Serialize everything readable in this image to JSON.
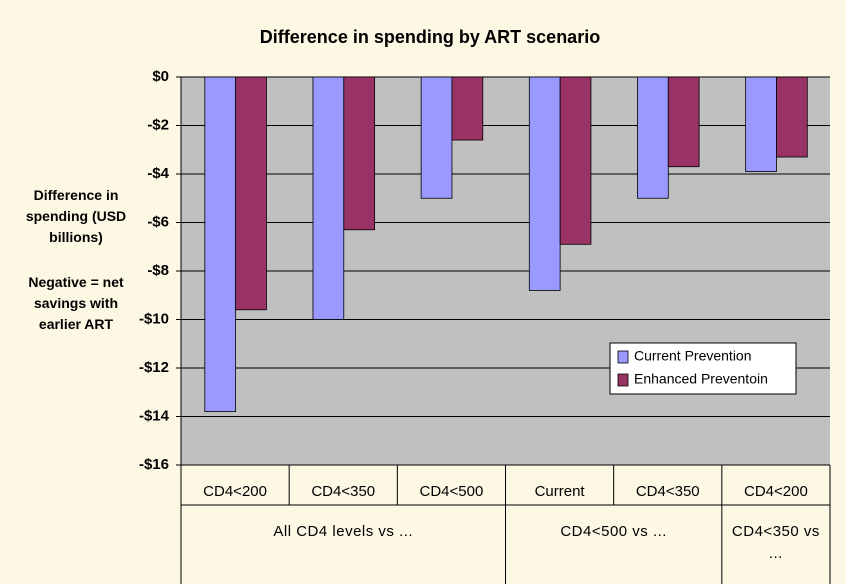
{
  "chart_data": {
    "type": "bar",
    "title": "Difference in spending by ART scenario",
    "y_label": "Difference in spending (USD billions)",
    "annotation": "Negative = net savings with earlier ART",
    "groups": [
      {
        "label": "All CD4 levels vs ...",
        "categories": [
          "CD4<200",
          "CD4<350",
          "CD4<500"
        ]
      },
      {
        "label": "CD4<500 vs ...",
        "categories": [
          "Current",
          "CD4<350"
        ]
      },
      {
        "label": "CD4<350 vs ...",
        "categories": [
          "CD4<200"
        ]
      }
    ],
    "series": [
      {
        "name": "Current Prevention",
        "color": "#9999ff",
        "values": [
          -13.8,
          -10,
          -5,
          -8.8,
          -5,
          -3.9
        ]
      },
      {
        "name": "Enhanced Preventoin",
        "color": "#993366",
        "values": [
          -9.6,
          -6.3,
          -2.6,
          -6.9,
          -3.7,
          -3.3
        ]
      }
    ],
    "ylim": [
      -16,
      0
    ],
    "yticks": [
      {
        "value": 0,
        "label": "$0"
      },
      {
        "value": -2,
        "label": "-$2"
      },
      {
        "value": -4,
        "label": "-$4"
      },
      {
        "value": -6,
        "label": "-$6"
      },
      {
        "value": -8,
        "label": "-$8"
      },
      {
        "value": -10,
        "label": "-$10"
      },
      {
        "value": -12,
        "label": "-$12"
      },
      {
        "value": -14,
        "label": "-$14"
      },
      {
        "value": -16,
        "label": "-$16"
      }
    ],
    "grid": true,
    "legend": "right"
  }
}
